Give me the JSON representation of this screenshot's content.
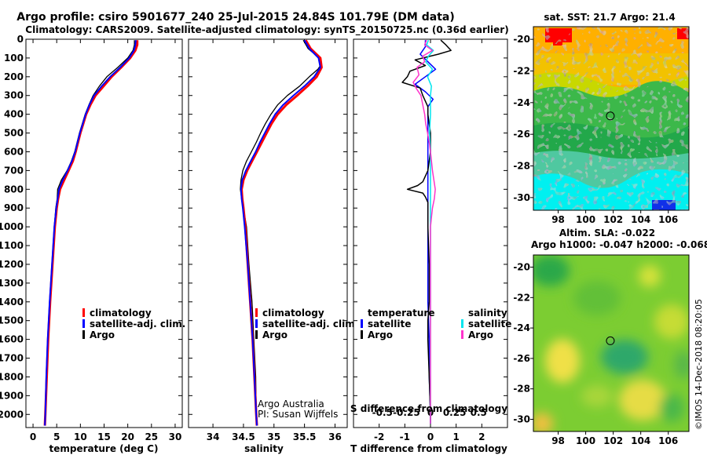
{
  "title_line1": "Argo profile: csiro 5901677_240 25-Jul-2015 24.84S 101.79E (DM data)",
  "title_line2": "Climatology: CARS2009. Satellite-adjusted climatology: synTS_20150725.nc (0.36d earlier)",
  "colors": {
    "climatology": "#ff0000",
    "satellite": "#0000ff",
    "argo": "#000000",
    "sat_salinity": "#00e5ee",
    "argo_salinity": "#ff33cc"
  },
  "chart_data": [
    {
      "name": "temperature-profile",
      "type": "line",
      "xlabel": "temperature (deg C)",
      "xlim": [
        -1.5,
        31.5
      ],
      "xticks": [
        0,
        5,
        10,
        15,
        20,
        25,
        30
      ],
      "xtick_labels": [
        "0",
        "5",
        "10",
        "15",
        "20",
        "25",
        "30"
      ],
      "ylim": [
        2070,
        0
      ],
      "yticks": [
        0,
        100,
        200,
        300,
        400,
        500,
        600,
        700,
        800,
        900,
        1000,
        1100,
        1200,
        1300,
        1400,
        1500,
        1600,
        1700,
        1800,
        1900,
        2000
      ],
      "legend": [
        "climatology",
        "satellite-adj. clim.",
        "Argo"
      ],
      "series": [
        {
          "name": "climatology",
          "depth": [
            5,
            30,
            60,
            100,
            150,
            200,
            250,
            300,
            350,
            400,
            450,
            500,
            550,
            600,
            650,
            700,
            750,
            800,
            850,
            900,
            1000,
            1200,
            1400,
            1600,
            1800,
            2000,
            2060
          ],
          "values": [
            22.0,
            22.0,
            21.6,
            20.5,
            18.6,
            16.6,
            14.9,
            13.2,
            12.1,
            11.2,
            10.6,
            10.0,
            9.5,
            9.0,
            8.4,
            7.5,
            6.6,
            5.7,
            5.3,
            5.0,
            4.6,
            4.1,
            3.6,
            3.2,
            2.9,
            2.6,
            2.5
          ]
        },
        {
          "name": "satellite-adj. clim.",
          "depth": [
            5,
            30,
            60,
            100,
            150,
            200,
            250,
            300,
            350,
            400,
            450,
            500,
            550,
            600,
            650,
            700,
            750,
            800,
            850,
            900,
            1000,
            1200,
            1400,
            1600,
            1800,
            2000,
            2060
          ],
          "values": [
            21.7,
            21.6,
            21.3,
            20.3,
            18.4,
            16.3,
            14.5,
            12.9,
            11.9,
            11.1,
            10.5,
            9.9,
            9.4,
            8.9,
            8.2,
            7.3,
            6.3,
            5.5,
            5.2,
            4.9,
            4.5,
            4.0,
            3.5,
            3.1,
            2.8,
            2.6,
            2.5
          ]
        },
        {
          "name": "Argo",
          "depth": [
            5,
            30,
            60,
            100,
            150,
            200,
            250,
            300,
            350,
            400,
            450,
            500,
            550,
            600,
            650,
            700,
            750,
            800,
            850,
            900,
            1000,
            1200,
            1400,
            1600,
            1800,
            2000,
            2050
          ],
          "values": [
            21.4,
            21.4,
            21.1,
            20.0,
            17.9,
            15.6,
            14.0,
            12.7,
            11.8,
            11.0,
            10.4,
            9.8,
            9.3,
            8.8,
            8.1,
            7.2,
            6.0,
            5.2,
            5.1,
            4.8,
            4.5,
            4.0,
            3.5,
            3.1,
            2.8,
            2.6,
            2.5
          ]
        }
      ]
    },
    {
      "name": "salinity-profile",
      "type": "line",
      "xlabel": "salinity",
      "xlim": [
        33.6,
        36.2
      ],
      "xticks": [
        34,
        34.5,
        35,
        35.5,
        36
      ],
      "xtick_labels": [
        "34",
        "34.5",
        "35",
        "35.5",
        "36"
      ],
      "ylim": [
        2070,
        0
      ],
      "legend": [
        "climatology",
        "satellite-adj. clim.",
        "Argo"
      ],
      "credits": [
        "Argo Australia",
        "PI: Susan Wijffels"
      ],
      "series": [
        {
          "name": "climatology",
          "depth": [
            5,
            50,
            100,
            150,
            200,
            250,
            300,
            350,
            400,
            450,
            500,
            550,
            600,
            650,
            700,
            750,
            800,
            850,
            900,
            1000,
            1200,
            1400,
            1600,
            1800,
            2000,
            2060
          ],
          "values": [
            35.52,
            35.6,
            35.76,
            35.78,
            35.7,
            35.55,
            35.38,
            35.2,
            35.06,
            34.96,
            34.88,
            34.8,
            34.72,
            34.64,
            34.56,
            34.5,
            34.47,
            34.48,
            34.5,
            34.53,
            34.57,
            34.61,
            34.65,
            34.68,
            34.71,
            34.72
          ]
        },
        {
          "name": "satellite-adj. clim.",
          "depth": [
            5,
            50,
            100,
            150,
            200,
            250,
            300,
            350,
            400,
            450,
            500,
            550,
            600,
            650,
            700,
            750,
            800,
            850,
            900,
            1000,
            1200,
            1400,
            1600,
            1800,
            2000,
            2060
          ],
          "values": [
            35.5,
            35.58,
            35.73,
            35.76,
            35.66,
            35.5,
            35.32,
            35.15,
            35.02,
            34.93,
            34.85,
            34.77,
            34.7,
            34.62,
            34.54,
            34.48,
            34.46,
            34.47,
            34.49,
            34.52,
            34.57,
            34.61,
            34.65,
            34.68,
            34.71,
            34.72
          ]
        },
        {
          "name": "Argo",
          "depth": [
            5,
            50,
            100,
            130,
            160,
            200,
            250,
            300,
            350,
            400,
            450,
            500,
            550,
            600,
            650,
            700,
            750,
            800,
            850,
            900,
            1000,
            1200,
            1400,
            1600,
            1800,
            2000,
            2050
          ],
          "values": [
            35.48,
            35.56,
            35.74,
            35.78,
            35.72,
            35.58,
            35.42,
            35.22,
            35.06,
            34.95,
            34.86,
            34.78,
            34.71,
            34.63,
            34.55,
            34.49,
            34.46,
            34.45,
            34.47,
            34.5,
            34.55,
            34.59,
            34.64,
            34.67,
            34.7,
            34.71,
            34.71
          ]
        }
      ]
    },
    {
      "name": "difference-profile",
      "type": "line",
      "xlabel": "T difference from climatology",
      "xlabel_top": "S difference from climatology",
      "xlim": [
        -3.0,
        3.0
      ],
      "xticks": [
        -2,
        -1,
        0,
        1,
        2
      ],
      "xtick_labels": [
        "-2",
        "-1",
        "0",
        "1",
        "2"
      ],
      "sticks": [
        -0.5,
        -0.25,
        0,
        0.25,
        0.5
      ],
      "stick_labels": [
        "-0.5",
        "-0.25",
        "0",
        "0.25",
        "0.5"
      ],
      "ylim": [
        2070,
        0
      ],
      "legend_temperature_title": "temperature",
      "legend_salinity_title": "salinity",
      "legend_temperature": [
        "satellite",
        "Argo"
      ],
      "legend_salinity": [
        "satellite",
        "Argo"
      ],
      "series": [
        {
          "name": "T satellite",
          "depth": [
            5,
            40,
            80,
            120,
            160,
            200,
            240,
            280,
            320,
            360,
            400,
            500,
            600,
            700,
            800,
            850,
            900,
            1000,
            1200,
            1400,
            1600,
            1800,
            2000,
            2050
          ],
          "values": [
            -0.2,
            -0.2,
            -0.4,
            -0.1,
            0.2,
            -0.2,
            -0.6,
            -0.2,
            0.1,
            -0.1,
            -0.1,
            -0.1,
            -0.1,
            -0.1,
            -0.1,
            -0.1,
            -0.1,
            -0.1,
            -0.1,
            -0.1,
            -0.05,
            -0.05,
            0,
            0
          ]
        },
        {
          "name": "T Argo",
          "depth": [
            5,
            30,
            60,
            80,
            110,
            140,
            170,
            200,
            230,
            260,
            300,
            360,
            400,
            500,
            600,
            700,
            760,
            780,
            800,
            820,
            840,
            870,
            900,
            1000,
            1200,
            1400,
            1500,
            1600,
            1800,
            2000,
            2050
          ],
          "values": [
            0.4,
            0.6,
            0.8,
            0.3,
            -0.6,
            -0.2,
            -0.8,
            -0.9,
            -1.1,
            -0.4,
            -0.3,
            -0.1,
            -0.1,
            0,
            0,
            -0.1,
            -0.3,
            -0.5,
            -0.9,
            -0.3,
            -0.2,
            -0.1,
            -0.1,
            -0.1,
            -0.05,
            -0.05,
            -0.1,
            -0.1,
            -0.05,
            0,
            0
          ]
        },
        {
          "name": "S satellite",
          "depth": [
            5,
            30,
            60,
            90,
            120,
            160,
            200,
            250,
            300,
            400,
            500,
            600,
            700,
            800,
            900,
            1000,
            1200,
            1400,
            1600,
            1800,
            2000,
            2050
          ],
          "values": [
            -0.02,
            -0.04,
            0.03,
            -0.02,
            -0.05,
            0.02,
            -0.03,
            0.01,
            0,
            0,
            -0.01,
            0,
            0,
            0,
            0,
            0,
            0,
            0,
            0,
            0,
            0,
            0
          ]
        },
        {
          "name": "S Argo",
          "depth": [
            5,
            30,
            60,
            90,
            120,
            150,
            190,
            230,
            260,
            300,
            350,
            400,
            450,
            500,
            560,
            600,
            700,
            800,
            850,
            900,
            950,
            1000,
            1200,
            1400,
            1600,
            1800,
            2000,
            2050
          ],
          "values": [
            -0.04,
            -0.06,
            0.02,
            -0.08,
            -0.06,
            -0.14,
            -0.12,
            -0.18,
            -0.15,
            -0.1,
            -0.08,
            -0.06,
            -0.05,
            -0.03,
            -0.01,
            0,
            0.02,
            0.05,
            0.04,
            0.02,
            0.01,
            0,
            0,
            0,
            0,
            0,
            0,
            0
          ]
        }
      ]
    }
  ],
  "maps": [
    {
      "name": "sst-map",
      "title": "sat. SST: 21.7 Argo: 21.4",
      "xticks": [
        98,
        100,
        102,
        104,
        106
      ],
      "yticks": [
        -20,
        -22,
        -24,
        -26,
        -28,
        -30
      ],
      "xtick_labels": [
        "98",
        "100",
        "102",
        "104",
        "106"
      ],
      "ytick_labels": [
        "-20",
        "-22",
        "-24",
        "-26",
        "-28",
        "-30"
      ],
      "marker": {
        "lon": 101.79,
        "lat": -24.84
      }
    },
    {
      "name": "sla-map",
      "title": "Altim. SLA: -0.022",
      "subtitle": "Argo h1000: -0.047 h2000: -0.068",
      "xticks": [
        98,
        100,
        102,
        104,
        106
      ],
      "yticks": [
        -20,
        -22,
        -24,
        -26,
        -28,
        -30
      ],
      "xtick_labels": [
        "98",
        "100",
        "102",
        "104",
        "106"
      ],
      "ytick_labels": [
        "-20",
        "-22",
        "-24",
        "-26",
        "-28",
        "-30"
      ],
      "marker": {
        "lon": 101.79,
        "lat": -24.84
      }
    }
  ],
  "ytick_labels": [
    "0",
    "100",
    "200",
    "300",
    "400",
    "500",
    "600",
    "700",
    "800",
    "900",
    "1000",
    "1100",
    "1200",
    "1300",
    "1400",
    "1500",
    "1600",
    "1700",
    "1800",
    "1900",
    "2000"
  ],
  "stamp": "©IMOS 14-Dec-2018 08:20:05"
}
